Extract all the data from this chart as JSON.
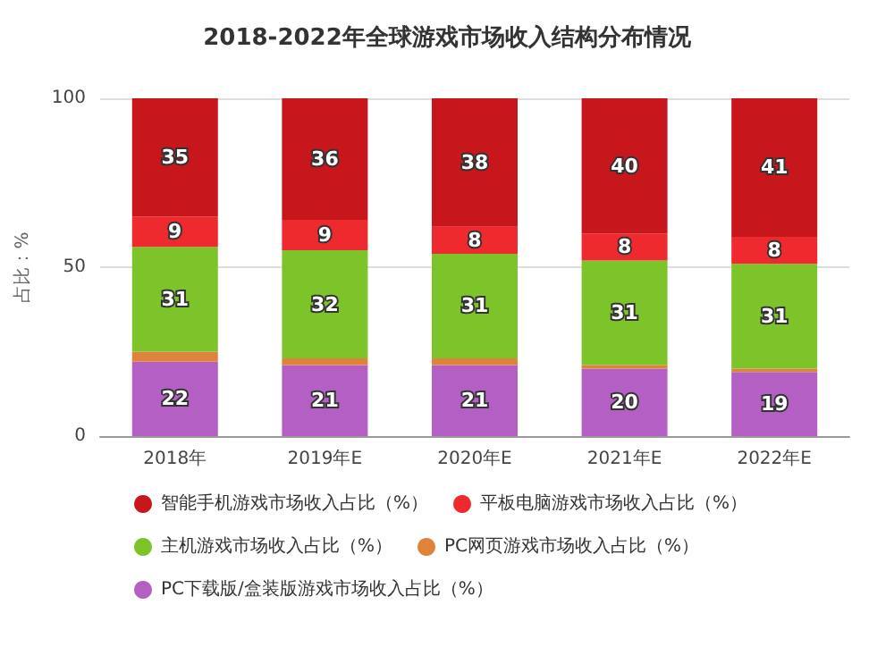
{
  "chart_data": {
    "type": "bar",
    "stacked": true,
    "title": "2018-2022年全球游戏市场收入结构分布情况",
    "ylabel": "占比：%",
    "categories": [
      "2018年",
      "2019年E",
      "2020年E",
      "2021年E",
      "2022年E"
    ],
    "series": [
      {
        "name": "PC下载版/盒装版游戏市场收入占比（%）",
        "color": "#b45fc4",
        "values": [
          22,
          21,
          21,
          20,
          19
        ],
        "value_labels": [
          "22",
          "21",
          "21",
          "20",
          "19"
        ]
      },
      {
        "name": "PC网页游戏市场收入占比（%）",
        "color": "#e0833a",
        "values": [
          3,
          2,
          2,
          1,
          1
        ],
        "value_labels": [
          null,
          null,
          null,
          null,
          null
        ]
      },
      {
        "name": "主机游戏市场收入占比（%）",
        "color": "#7dc42b",
        "values": [
          31,
          32,
          31,
          31,
          31
        ],
        "value_labels": [
          "31",
          "32",
          "31",
          "31",
          "31"
        ]
      },
      {
        "name": "平板电脑游戏市场收入占比（%）",
        "color": "#ee2a2f",
        "values": [
          9,
          9,
          8,
          8,
          8
        ],
        "value_labels": [
          "9",
          "9",
          "8",
          "8",
          "8"
        ]
      },
      {
        "name": "智能手机游戏市场收入占比（%）",
        "color": "#c8161d",
        "values": [
          35,
          36,
          38,
          40,
          41
        ],
        "value_labels": [
          "35",
          "36",
          "38",
          "40",
          "41"
        ]
      }
    ],
    "ylim": [
      0,
      100
    ],
    "yticks": [
      0,
      50,
      100
    ],
    "grid": "y",
    "legend": "bottom"
  }
}
